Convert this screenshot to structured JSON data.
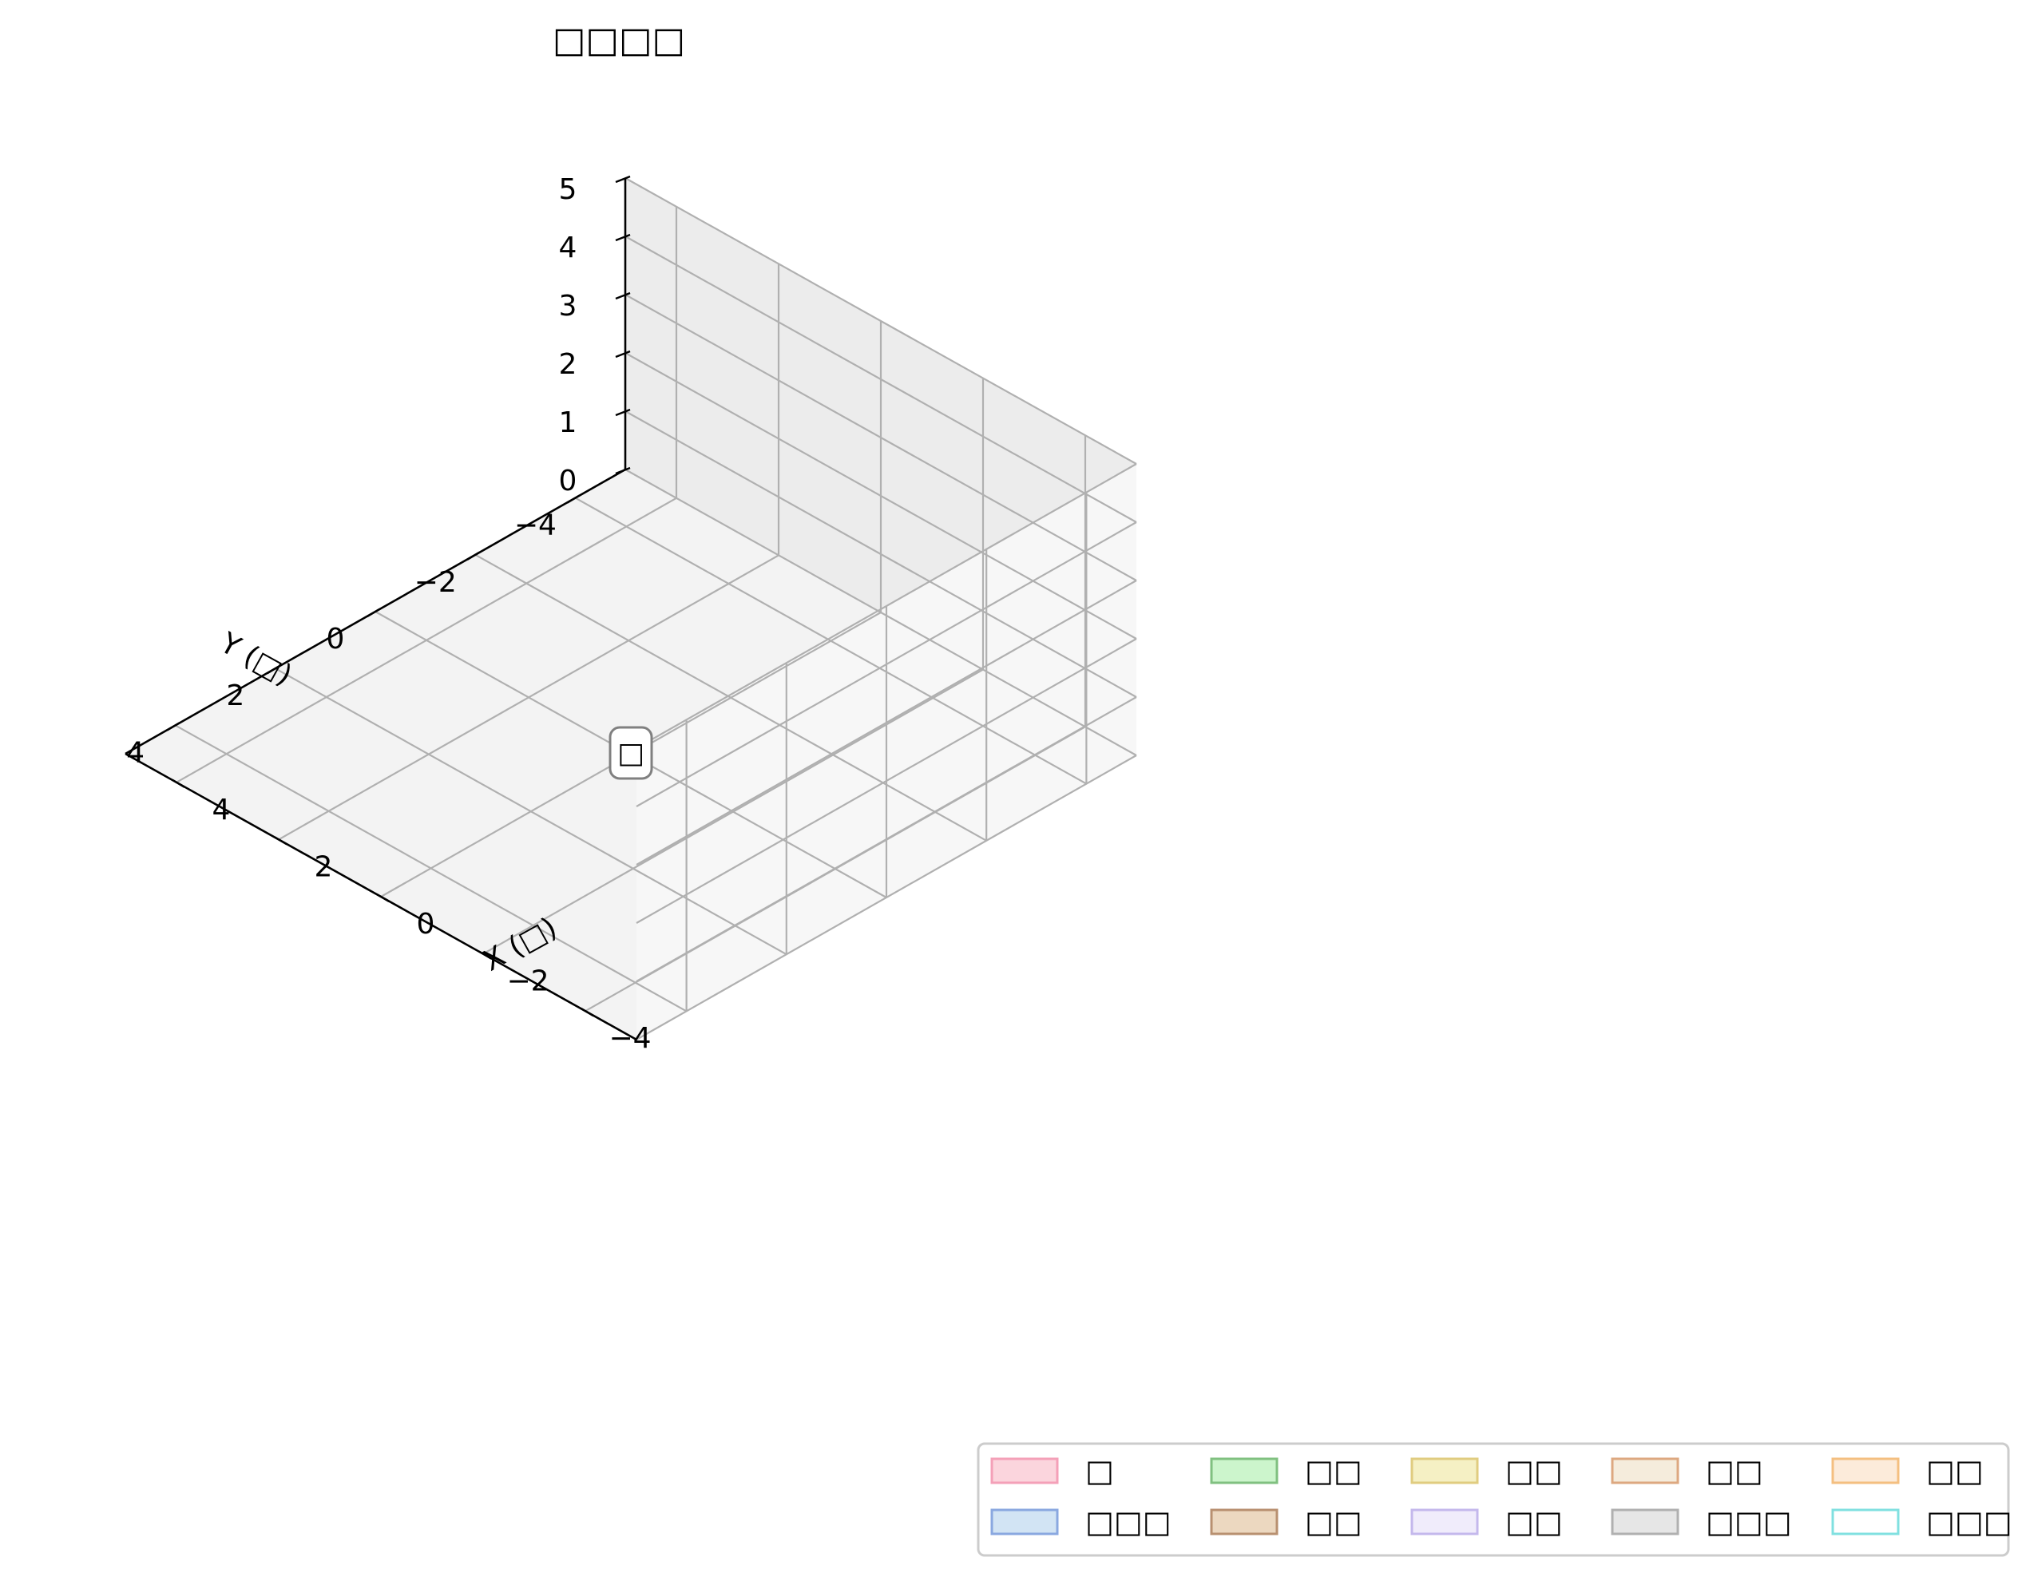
{
  "chart_data": {
    "type": "3d-bar",
    "title": "□□□□",
    "xlabel": "X (□)",
    "ylabel": "Y (□)",
    "zlabel": "",
    "xlim": [
      -5,
      5
    ],
    "ylim": [
      -5,
      5
    ],
    "zlim": [
      0,
      5
    ],
    "x_ticks": [
      "−4",
      "−2",
      "0",
      "2",
      "4"
    ],
    "y_ticks": [
      "−4",
      "−2",
      "0",
      "2",
      "4"
    ],
    "z_ticks": [
      "0",
      "1",
      "2",
      "3",
      "4",
      "5"
    ],
    "grid": true,
    "legend_position": "bottom-right",
    "annotations": [
      {
        "text": "□",
        "x": 0,
        "y": 0,
        "z": 0
      }
    ],
    "series": [
      {
        "name": "□",
        "fill": "#fbd5dd",
        "edge": "#f4a0b8"
      },
      {
        "name": "□□□",
        "fill": "#d2e4f4",
        "edge": "#8aa8e0"
      },
      {
        "name": "□□",
        "fill": "#ccf5cc",
        "edge": "#80c080"
      },
      {
        "name": "□□",
        "fill": "#ecd8c0",
        "edge": "#b89070"
      },
      {
        "name": "□□",
        "fill": "#f5f0c4",
        "edge": "#e0cc80"
      },
      {
        "name": "□□",
        "fill": "#f0ecfb",
        "edge": "#c4b8ec"
      },
      {
        "name": "□□",
        "fill": "#f5ecdc",
        "edge": "#dda880"
      },
      {
        "name": "□□□",
        "fill": "#e6e6e6",
        "edge": "#b0b0b0"
      },
      {
        "name": "□□",
        "fill": "#fcebda",
        "edge": "#f4bf80"
      },
      {
        "name": "□□□",
        "fill": "#ffffff",
        "edge": "#80e0e0"
      }
    ]
  }
}
